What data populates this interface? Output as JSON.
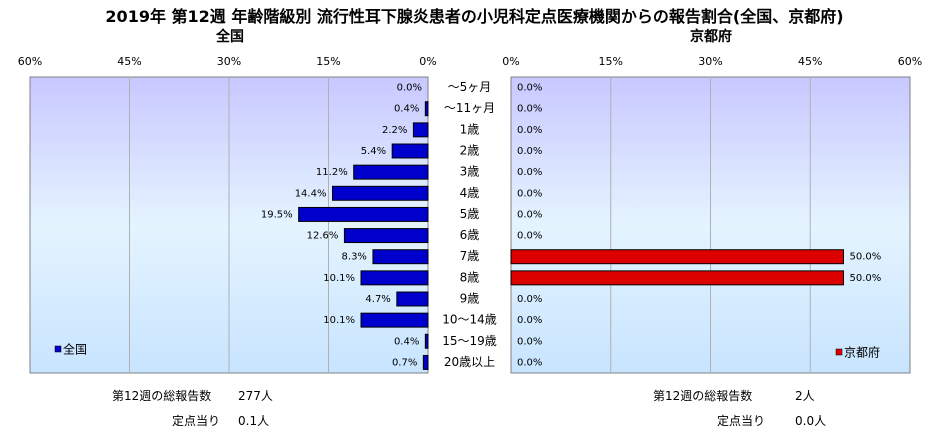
{
  "title": "2019年 第12週 年齢階級別 流行性耳下腺炎患者の小児科定点医療機関からの報告割合(全国、京都府)",
  "left_panel_title": "全国",
  "right_panel_title": "京都府",
  "chart_data": {
    "type": "bar",
    "orientation": "horizontal-butterfly",
    "categories": [
      "～5ヶ月",
      "～11ヶ月",
      "1歳",
      "2歳",
      "3歳",
      "4歳",
      "5歳",
      "6歳",
      "7歳",
      "8歳",
      "9歳",
      "10～14歳",
      "15～19歳",
      "20歳以上"
    ],
    "axis_ticks": [
      "60%",
      "45%",
      "30%",
      "15%",
      "0%"
    ],
    "axis_ticks_right": [
      "0%",
      "15%",
      "30%",
      "45%",
      "60%"
    ],
    "xlim": [
      0,
      60
    ],
    "series": [
      {
        "name": "全国",
        "side": "left",
        "color": "#0000cc",
        "values": [
          0.0,
          0.4,
          2.2,
          5.4,
          11.2,
          14.4,
          19.5,
          12.6,
          8.3,
          10.1,
          4.7,
          10.1,
          0.4,
          0.7
        ],
        "labels": [
          "0.0%",
          "0.4%",
          "2.2%",
          "5.4%",
          "11.2%",
          "14.4%",
          "19.5%",
          "12.6%",
          "8.3%",
          "10.1%",
          "4.7%",
          "10.1%",
          "0.4%",
          "0.7%"
        ]
      },
      {
        "name": "京都府",
        "side": "right",
        "color": "#dd0000",
        "values": [
          0.0,
          0.0,
          0.0,
          0.0,
          0.0,
          0.0,
          0.0,
          0.0,
          50.0,
          50.0,
          0.0,
          0.0,
          0.0,
          0.0
        ],
        "labels": [
          "0.0%",
          "0.0%",
          "0.0%",
          "0.0%",
          "0.0%",
          "0.0%",
          "0.0%",
          "0.0%",
          "50.0%",
          "50.0%",
          "0.0%",
          "0.0%",
          "0.0%",
          "0.0%"
        ]
      }
    ],
    "grid": true,
    "legend_left": "bottom-left",
    "legend_right": "bottom-right",
    "plot_background": "light-blue-gradient"
  },
  "summary": {
    "national": {
      "total_label": "第12週の総報告数",
      "total_value": "277人",
      "per_site_label": "定点当り",
      "per_site_value": "0.1人"
    },
    "kyoto": {
      "total_label": "第12週の総報告数",
      "total_value": "2人",
      "per_site_label": "定点当り",
      "per_site_value": "0.0人"
    }
  }
}
